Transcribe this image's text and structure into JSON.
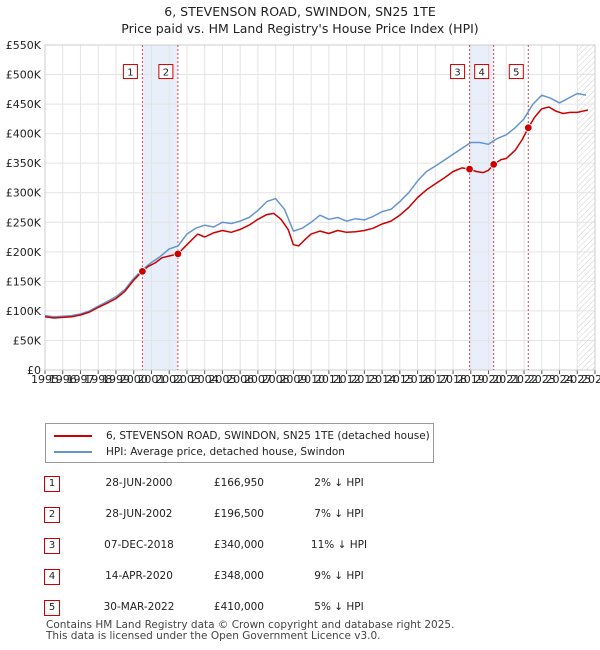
{
  "chart_data": {
    "type": "line",
    "title": "6, STEVENSON ROAD, SWINDON, SN25 1TE",
    "subtitle": "Price paid vs. HM Land Registry's House Price Index (HPI)",
    "xlabel": "",
    "ylabel": "",
    "xlim": [
      1995,
      2026
    ],
    "ylim": [
      0,
      550000
    ],
    "x_ticks": [
      "1995",
      "1996",
      "1997",
      "1998",
      "1999",
      "2000",
      "2001",
      "2002",
      "2003",
      "2004",
      "2005",
      "2006",
      "2007",
      "2008",
      "2009",
      "2010",
      "2011",
      "2012",
      "2013",
      "2014",
      "2015",
      "2016",
      "2017",
      "2018",
      "2019",
      "2020",
      "2021",
      "2022",
      "2023",
      "2024",
      "2025",
      "2026"
    ],
    "y_ticks": [
      {
        "value": 0,
        "label": "£0"
      },
      {
        "value": 50000,
        "label": "£50K"
      },
      {
        "value": 100000,
        "label": "£100K"
      },
      {
        "value": 150000,
        "label": "£150K"
      },
      {
        "value": 200000,
        "label": "£200K"
      },
      {
        "value": 250000,
        "label": "£250K"
      },
      {
        "value": 300000,
        "label": "£300K"
      },
      {
        "value": 350000,
        "label": "£350K"
      },
      {
        "value": 400000,
        "label": "£400K"
      },
      {
        "value": 450000,
        "label": "£450K"
      },
      {
        "value": 500000,
        "label": "£500K"
      },
      {
        "value": 550000,
        "label": "£550K"
      }
    ],
    "grid": true,
    "future_shade_from": 2025.0,
    "series": [
      {
        "name": "6, STEVENSON ROAD, SWINDON, SN25 1TE (detached house)",
        "color": "#cc0000",
        "x": [
          1995.0,
          1995.5,
          1996.0,
          1996.5,
          1997.0,
          1997.5,
          1998.0,
          1998.5,
          1999.0,
          1999.5,
          2000.0,
          2000.49,
          2000.8,
          2001.2,
          2001.6,
          2002.0,
          2002.49,
          2002.8,
          2003.2,
          2003.6,
          2004.0,
          2004.5,
          2005.0,
          2005.5,
          2006.0,
          2006.5,
          2007.0,
          2007.5,
          2007.9,
          2008.3,
          2008.7,
          2009.0,
          2009.3,
          2009.7,
          2010.0,
          2010.5,
          2011.0,
          2011.5,
          2012.0,
          2012.5,
          2013.0,
          2013.5,
          2014.0,
          2014.5,
          2015.0,
          2015.5,
          2016.0,
          2016.5,
          2017.0,
          2017.5,
          2018.0,
          2018.5,
          2018.93,
          2019.3,
          2019.7,
          2020.0,
          2020.29,
          2020.7,
          2021.0,
          2021.5,
          2021.9,
          2022.24,
          2022.6,
          2023.0,
          2023.4,
          2023.8,
          2024.2,
          2024.6,
          2025.0,
          2025.3,
          2025.6
        ],
        "values": [
          90000,
          88000,
          89000,
          90000,
          93000,
          98000,
          106000,
          113000,
          121000,
          133000,
          152000,
          166950,
          175000,
          181000,
          190000,
          193000,
          196500,
          206000,
          218000,
          230000,
          225000,
          232000,
          236000,
          233000,
          238000,
          245000,
          255000,
          263000,
          265000,
          255000,
          238000,
          212000,
          210000,
          222000,
          230000,
          235000,
          231000,
          236000,
          233000,
          234000,
          236000,
          240000,
          247000,
          252000,
          262000,
          275000,
          292000,
          305000,
          315000,
          325000,
          336000,
          342000,
          340000,
          336000,
          334000,
          338000,
          348000,
          356000,
          358000,
          372000,
          390000,
          410000,
          428000,
          442000,
          445000,
          438000,
          434000,
          436000,
          436000,
          438000,
          440000
        ]
      },
      {
        "name": "HPI: Average price, detached house, Swindon",
        "color": "#6495cf",
        "x": [
          1995.0,
          1995.5,
          1996.0,
          1996.5,
          1997.0,
          1997.5,
          1998.0,
          1998.5,
          1999.0,
          1999.5,
          2000.0,
          2000.5,
          2001.0,
          2001.5,
          2002.0,
          2002.5,
          2003.0,
          2003.5,
          2004.0,
          2004.5,
          2005.0,
          2005.5,
          2006.0,
          2006.5,
          2007.0,
          2007.5,
          2008.0,
          2008.5,
          2009.0,
          2009.5,
          2010.0,
          2010.5,
          2011.0,
          2011.5,
          2012.0,
          2012.5,
          2013.0,
          2013.5,
          2014.0,
          2014.5,
          2015.0,
          2015.5,
          2016.0,
          2016.5,
          2017.0,
          2017.5,
          2018.0,
          2018.5,
          2019.0,
          2019.5,
          2020.0,
          2020.5,
          2021.0,
          2021.5,
          2022.0,
          2022.5,
          2023.0,
          2023.5,
          2024.0,
          2024.5,
          2025.0,
          2025.5
        ],
        "values": [
          92000,
          90000,
          91000,
          92000,
          95000,
          100000,
          108000,
          116000,
          124000,
          136000,
          155000,
          170000,
          182000,
          192000,
          205000,
          210000,
          230000,
          240000,
          245000,
          242000,
          250000,
          248000,
          252000,
          258000,
          270000,
          285000,
          290000,
          272000,
          235000,
          240000,
          250000,
          262000,
          255000,
          258000,
          252000,
          256000,
          254000,
          260000,
          268000,
          272000,
          285000,
          300000,
          320000,
          336000,
          345000,
          355000,
          365000,
          375000,
          385000,
          385000,
          382000,
          392000,
          398000,
          410000,
          425000,
          450000,
          465000,
          460000,
          452000,
          460000,
          468000,
          465000
        ]
      }
    ],
    "sales": [
      {
        "id": "1",
        "x": 2000.49,
        "value": 166950
      },
      {
        "id": "2",
        "x": 2002.49,
        "value": 196500
      },
      {
        "id": "3",
        "x": 2018.93,
        "value": 340000
      },
      {
        "id": "4",
        "x": 2020.29,
        "value": 348000
      },
      {
        "id": "5",
        "x": 2022.24,
        "value": 410000
      }
    ],
    "highlight_periods": [
      [
        2000.49,
        2002.49
      ],
      [
        2018.93,
        2020.29
      ]
    ]
  },
  "legend": {
    "property_label": "6, STEVENSON ROAD, SWINDON, SN25 1TE (detached house)",
    "hpi_label": "HPI: Average price, detached house, Swindon",
    "property_color": "#cc0000",
    "hpi_color": "#6495cf"
  },
  "sales_table": [
    {
      "num": "1",
      "date": "28-JUN-2000",
      "price": "£166,950",
      "diff": "2% ↓ HPI"
    },
    {
      "num": "2",
      "date": "28-JUN-2002",
      "price": "£196,500",
      "diff": "7% ↓ HPI"
    },
    {
      "num": "3",
      "date": "07-DEC-2018",
      "price": "£340,000",
      "diff": "11% ↓ HPI"
    },
    {
      "num": "4",
      "date": "14-APR-2020",
      "price": "£348,000",
      "diff": "9% ↓ HPI"
    },
    {
      "num": "5",
      "date": "30-MAR-2022",
      "price": "£410,000",
      "diff": "5% ↓ HPI"
    }
  ],
  "footer": {
    "line1": "Contains HM Land Registry data © Crown copyright and database right 2025.",
    "line2": "This data is licensed under the Open Government Licence v3.0."
  }
}
